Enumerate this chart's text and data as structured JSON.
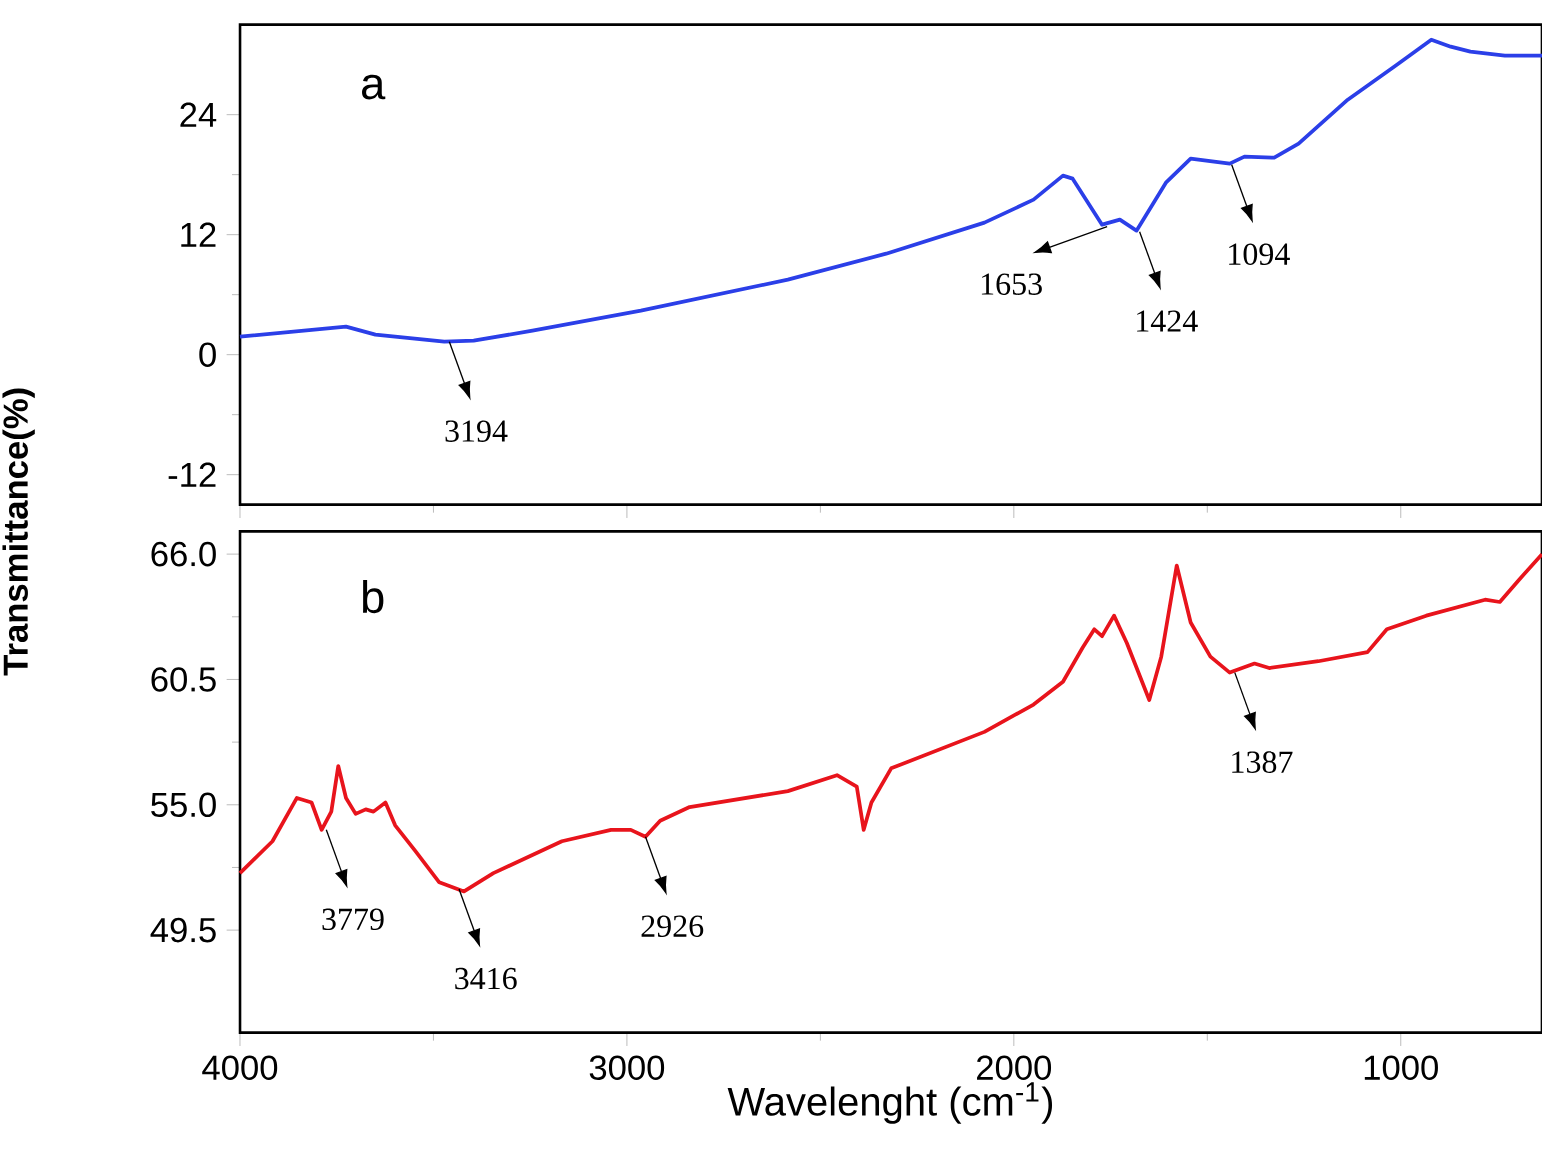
{
  "chart_data": [
    {
      "type": "line",
      "title": "a",
      "xlim": [
        4000,
        635
      ],
      "ylim": [
        -15,
        33
      ],
      "xticks": [
        4000,
        3000,
        2000,
        1000
      ],
      "yticks": [
        -12,
        0,
        12,
        24
      ],
      "tick_labels": "y",
      "series": [
        {
          "color": "#2b3fe8",
          "x": [
            4000,
            3726,
            3650,
            3472,
            3396,
            3244,
            2964,
            2584,
            2330,
            2076,
            1949,
            1873,
            1848,
            1772,
            1726,
            1683,
            1607,
            1543,
            1442,
            1404,
            1327,
            1264,
            1137,
            1010,
            921,
            871,
            820,
            731,
            635
          ],
          "values": [
            1.8,
            2.8,
            2.0,
            1.3,
            1.4,
            2.4,
            4.4,
            7.5,
            10.1,
            13.2,
            15.5,
            17.9,
            17.6,
            13.0,
            13.5,
            12.4,
            17.2,
            19.6,
            19.1,
            19.8,
            19.7,
            21.1,
            25.5,
            29.0,
            31.5,
            30.8,
            30.3,
            29.9,
            29.9
          ]
        }
      ],
      "annotations": [
        {
          "text": "3194",
          "x": 3459,
          "y": 1.3
        },
        {
          "text": "1653",
          "x": 1759,
          "y": 12.8
        },
        {
          "text": "1424",
          "x": 1675,
          "y": 12.3
        },
        {
          "text": "1094",
          "x": 1437,
          "y": 19.0
        }
      ]
    },
    {
      "type": "line",
      "title": "b",
      "xlabel": "Wavelenght (cm$^{-1}$)",
      "ylabel": "Transmittance(%)",
      "xlim": [
        4000,
        635
      ],
      "ylim": [
        45,
        67
      ],
      "xticks": [
        4000,
        3000,
        2000,
        1000
      ],
      "yticks": [
        {
          "value": 49.5,
          "label": "49.5"
        },
        {
          "value": 55,
          "label": "55.0"
        },
        {
          "value": 60.5,
          "label": "60.5"
        },
        {
          "value": 66,
          "label": "66.0"
        }
      ],
      "series": [
        {
          "color": "#e8141c",
          "x": [
            4000,
            3916,
            3853,
            3815,
            3789,
            3764,
            3746,
            3726,
            3701,
            3675,
            3655,
            3624,
            3599,
            3548,
            3485,
            3421,
            3345,
            3168,
            3041,
            2990,
            2952,
            2914,
            2838,
            2584,
            2457,
            2406,
            2388,
            2368,
            2317,
            2076,
            1949,
            1873,
            1822,
            1792,
            1772,
            1741,
            1708,
            1650,
            1619,
            1579,
            1543,
            1492,
            1442,
            1378,
            1340,
            1213,
            1086,
            1036,
            934,
            782,
            744,
            693,
            635
          ],
          "values": [
            52.0,
            53.4,
            55.3,
            55.1,
            53.9,
            54.7,
            56.7,
            55.3,
            54.6,
            54.8,
            54.7,
            55.1,
            54.1,
            53.0,
            51.6,
            51.2,
            52.0,
            53.4,
            53.9,
            53.9,
            53.6,
            54.3,
            54.9,
            55.6,
            56.3,
            55.8,
            53.9,
            55.1,
            56.6,
            58.2,
            59.4,
            60.4,
            61.9,
            62.7,
            62.4,
            63.3,
            62.1,
            59.6,
            61.5,
            65.5,
            63.0,
            61.5,
            60.8,
            61.2,
            61.0,
            61.3,
            61.7,
            62.7,
            63.3,
            64.0,
            63.9,
            64.9,
            66.0
          ]
        }
      ],
      "annotations": [
        {
          "text": "3779",
          "x": 3777,
          "y": 53.9
        },
        {
          "text": "3416",
          "x": 3434,
          "y": 51.3
        },
        {
          "text": "2926",
          "x": 2952,
          "y": 53.6
        },
        {
          "text": "1387",
          "x": 1429,
          "y": 60.8
        }
      ]
    }
  ]
}
